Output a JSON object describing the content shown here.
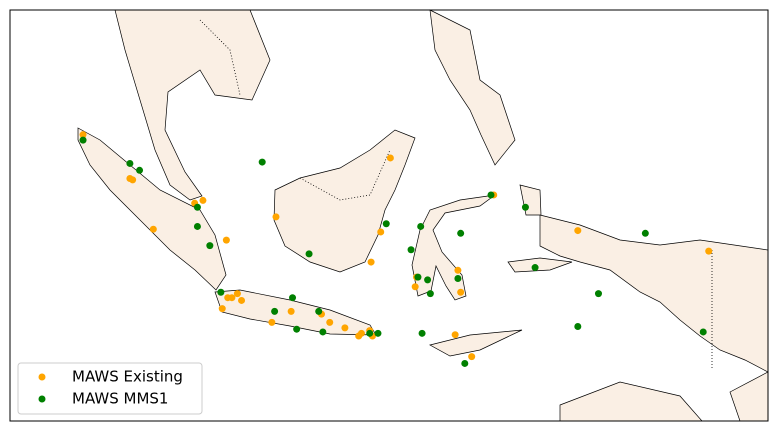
{
  "chart_data": {
    "type": "scatter",
    "xlim": [
      90,
      145
    ],
    "ylim": [
      -15,
      15
    ],
    "legend": "lower left",
    "series": [
      {
        "name": "MAWS Existing",
        "color": "#ffa500",
        "x": [
          95.3,
          98.7,
          98.9,
          100.4,
          103.4,
          104.0,
          105.7,
          105.4,
          105.8,
          106.1,
          106.5,
          106.8,
          109.0,
          109.3,
          110.4,
          112.6,
          113.2,
          114.3,
          115.3,
          115.5,
          116.1,
          116.3,
          116.9,
          116.2,
          117.6,
          119.4,
          119.5,
          122.3,
          122.5,
          122.7,
          123.5,
          125.1,
          131.2,
          140.7
        ],
        "y": [
          5.9,
          2.7,
          2.6,
          -1.0,
          0.9,
          1.1,
          -1.8,
          -6.8,
          -6.0,
          -6.0,
          -5.7,
          -6.2,
          -7.8,
          -0.1,
          -7.0,
          -7.2,
          -7.8,
          -8.2,
          -8.8,
          -8.6,
          -8.4,
          -8.8,
          -1.2,
          -3.4,
          4.2,
          -5.2,
          -4.5,
          -8.7,
          -4.0,
          -5.6,
          -10.3,
          1.5,
          -1.1,
          -2.6
        ]
      },
      {
        "name": "MAWS MMS1",
        "color": "#008000",
        "x": [
          95.3,
          98.7,
          99.4,
          103.6,
          103.6,
          104.5,
          105.3,
          108.3,
          109.2,
          110.5,
          110.8,
          111.7,
          112.4,
          112.7,
          116.1,
          116.7,
          117.3,
          119.1,
          119.6,
          119.9,
          119.8,
          120.3,
          120.5,
          122.7,
          122.5,
          124.9,
          127.4,
          128.1,
          131.2,
          132.7,
          136.1,
          140.3,
          123.0
        ],
        "y": [
          5.5,
          3.8,
          3.3,
          0.6,
          -0.8,
          -2.2,
          -5.6,
          3.9,
          -7.0,
          -6.0,
          -8.3,
          -2.8,
          -7.0,
          -8.5,
          -8.6,
          -8.6,
          -0.6,
          -2.5,
          -4.5,
          -8.6,
          -0.8,
          -4.7,
          -5.7,
          -1.3,
          -4.6,
          1.5,
          0.6,
          -3.8,
          -8.1,
          -5.7,
          -1.3,
          -8.5,
          -10.8
        ]
      }
    ]
  }
}
